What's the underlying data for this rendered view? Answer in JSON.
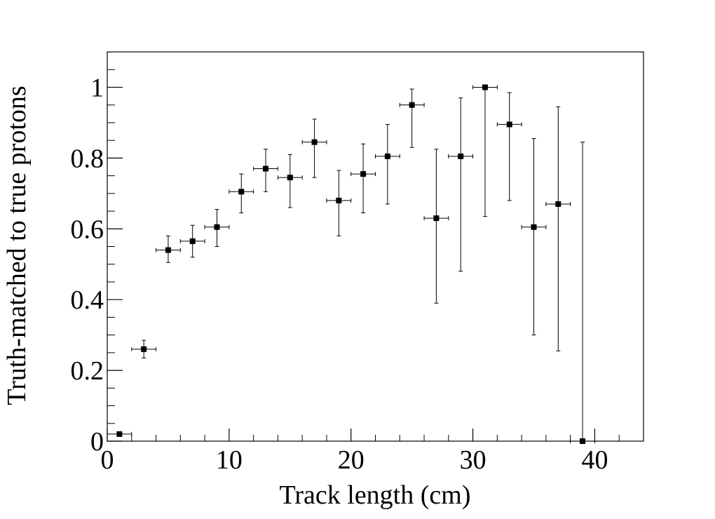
{
  "chart_data": {
    "type": "scatter",
    "xlabel": "Track length (cm)",
    "ylabel": "Truth-matched to true protons",
    "xlim": [
      0,
      44
    ],
    "ylim": [
      0,
      1.1
    ],
    "grid": false,
    "x_ticks": [
      0,
      10,
      20,
      30,
      40
    ],
    "x_tick_labels": [
      "0",
      "10",
      "20",
      "30",
      "40"
    ],
    "y_ticks": [
      0,
      0.2,
      0.4,
      0.6,
      0.8,
      1
    ],
    "y_tick_labels": [
      "0",
      "0.2",
      "0.4",
      "0.6",
      "0.8",
      "1"
    ],
    "x_bin_half_width": 1,
    "points": [
      {
        "x": 1,
        "y": 0.02,
        "y_lo": 0.02,
        "y_hi": 0.02
      },
      {
        "x": 3,
        "y": 0.26,
        "y_lo": 0.235,
        "y_hi": 0.285
      },
      {
        "x": 5,
        "y": 0.54,
        "y_lo": 0.505,
        "y_hi": 0.58
      },
      {
        "x": 7,
        "y": 0.565,
        "y_lo": 0.52,
        "y_hi": 0.61
      },
      {
        "x": 9,
        "y": 0.605,
        "y_lo": 0.55,
        "y_hi": 0.655
      },
      {
        "x": 11,
        "y": 0.705,
        "y_lo": 0.645,
        "y_hi": 0.755
      },
      {
        "x": 13,
        "y": 0.77,
        "y_lo": 0.705,
        "y_hi": 0.825
      },
      {
        "x": 15,
        "y": 0.745,
        "y_lo": 0.66,
        "y_hi": 0.81
      },
      {
        "x": 17,
        "y": 0.845,
        "y_lo": 0.745,
        "y_hi": 0.91
      },
      {
        "x": 19,
        "y": 0.68,
        "y_lo": 0.58,
        "y_hi": 0.765
      },
      {
        "x": 21,
        "y": 0.755,
        "y_lo": 0.645,
        "y_hi": 0.84
      },
      {
        "x": 23,
        "y": 0.805,
        "y_lo": 0.67,
        "y_hi": 0.895
      },
      {
        "x": 25,
        "y": 0.95,
        "y_lo": 0.83,
        "y_hi": 0.995
      },
      {
        "x": 27,
        "y": 0.63,
        "y_lo": 0.39,
        "y_hi": 0.825
      },
      {
        "x": 29,
        "y": 0.805,
        "y_lo": 0.48,
        "y_hi": 0.97
      },
      {
        "x": 31,
        "y": 1.0,
        "y_lo": 0.635,
        "y_hi": 1.0
      },
      {
        "x": 33,
        "y": 0.895,
        "y_lo": 0.68,
        "y_hi": 0.985
      },
      {
        "x": 35,
        "y": 0.605,
        "y_lo": 0.3,
        "y_hi": 0.855
      },
      {
        "x": 37,
        "y": 0.67,
        "y_lo": 0.255,
        "y_hi": 0.945
      },
      {
        "x": 39,
        "y": 0.0,
        "y_lo": 0.0,
        "y_hi": 0.845
      }
    ]
  }
}
